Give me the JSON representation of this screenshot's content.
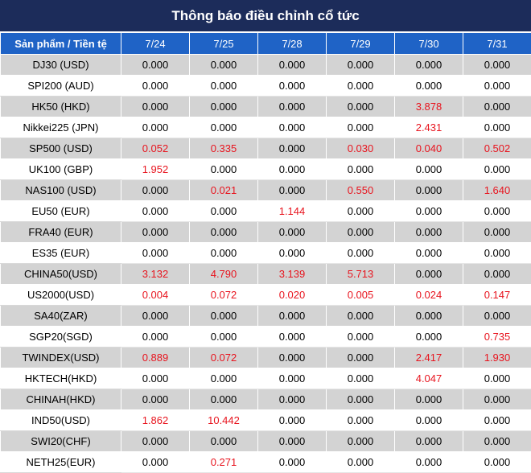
{
  "title": "Thông báo điều chỉnh cổ tức",
  "header": {
    "product_label": "Sản phẩm / Tiền tệ",
    "dates": [
      "7/24",
      "7/25",
      "7/28",
      "7/29",
      "7/30",
      "7/31"
    ]
  },
  "colors": {
    "title_bg": "#1c2c5a",
    "header_bg": "#1f63c6",
    "shaded_row_bg": "#d3d3d3",
    "highlight_text": "#e8141e"
  },
  "rows": [
    {
      "product": "DJ30 (USD)",
      "values": [
        "0.000",
        "0.000",
        "0.000",
        "0.000",
        "0.000",
        "0.000"
      ]
    },
    {
      "product": "SPI200 (AUD)",
      "values": [
        "0.000",
        "0.000",
        "0.000",
        "0.000",
        "0.000",
        "0.000"
      ]
    },
    {
      "product": "HK50 (HKD)",
      "values": [
        "0.000",
        "0.000",
        "0.000",
        "0.000",
        "3.878",
        "0.000"
      ]
    },
    {
      "product": "Nikkei225 (JPN)",
      "values": [
        "0.000",
        "0.000",
        "0.000",
        "0.000",
        "2.431",
        "0.000"
      ]
    },
    {
      "product": "SP500 (USD)",
      "values": [
        "0.052",
        "0.335",
        "0.000",
        "0.030",
        "0.040",
        "0.502"
      ]
    },
    {
      "product": "UK100 (GBP)",
      "values": [
        "1.952",
        "0.000",
        "0.000",
        "0.000",
        "0.000",
        "0.000"
      ]
    },
    {
      "product": "NAS100 (USD)",
      "values": [
        "0.000",
        "0.021",
        "0.000",
        "0.550",
        "0.000",
        "1.640"
      ]
    },
    {
      "product": "EU50 (EUR)",
      "values": [
        "0.000",
        "0.000",
        "1.144",
        "0.000",
        "0.000",
        "0.000"
      ]
    },
    {
      "product": "FRA40 (EUR)",
      "values": [
        "0.000",
        "0.000",
        "0.000",
        "0.000",
        "0.000",
        "0.000"
      ]
    },
    {
      "product": "ES35 (EUR)",
      "values": [
        "0.000",
        "0.000",
        "0.000",
        "0.000",
        "0.000",
        "0.000"
      ]
    },
    {
      "product": "CHINA50(USD)",
      "values": [
        "3.132",
        "4.790",
        "3.139",
        "5.713",
        "0.000",
        "0.000"
      ]
    },
    {
      "product": "US2000(USD)",
      "values": [
        "0.004",
        "0.072",
        "0.020",
        "0.005",
        "0.024",
        "0.147"
      ]
    },
    {
      "product": "SA40(ZAR)",
      "values": [
        "0.000",
        "0.000",
        "0.000",
        "0.000",
        "0.000",
        "0.000"
      ]
    },
    {
      "product": "SGP20(SGD)",
      "values": [
        "0.000",
        "0.000",
        "0.000",
        "0.000",
        "0.000",
        "0.735"
      ]
    },
    {
      "product": "TWINDEX(USD)",
      "values": [
        "0.889",
        "0.072",
        "0.000",
        "0.000",
        "2.417",
        "1.930"
      ]
    },
    {
      "product": "HKTECH(HKD)",
      "values": [
        "0.000",
        "0.000",
        "0.000",
        "0.000",
        "4.047",
        "0.000"
      ]
    },
    {
      "product": "CHINAH(HKD)",
      "values": [
        "0.000",
        "0.000",
        "0.000",
        "0.000",
        "0.000",
        "0.000"
      ]
    },
    {
      "product": "IND50(USD)",
      "values": [
        "1.862",
        "10.442",
        "0.000",
        "0.000",
        "0.000",
        "0.000"
      ]
    },
    {
      "product": "SWI20(CHF)",
      "values": [
        "0.000",
        "0.000",
        "0.000",
        "0.000",
        "0.000",
        "0.000"
      ]
    },
    {
      "product": "NETH25(EUR)",
      "values": [
        "0.000",
        "0.271",
        "0.000",
        "0.000",
        "0.000",
        "0.000"
      ]
    }
  ]
}
